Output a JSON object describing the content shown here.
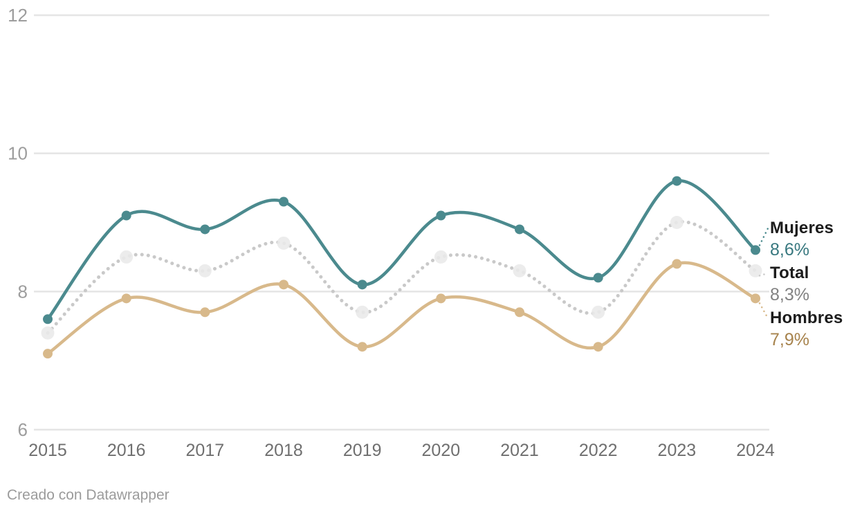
{
  "chart_data": {
    "type": "line",
    "x": [
      "2015",
      "2016",
      "2017",
      "2018",
      "2019",
      "2020",
      "2021",
      "2022",
      "2023",
      "2024"
    ],
    "yticks": [
      "6",
      "8",
      "10",
      "12"
    ],
    "ylim": [
      6,
      12
    ],
    "grid": true,
    "legend_position": "right-end-labels",
    "series": [
      {
        "name": "Mujeres",
        "style": "solid",
        "color": "#4b8a8e",
        "value_text_color": "#38787f",
        "end_value": "8,6%",
        "values": [
          7.6,
          9.1,
          8.9,
          9.3,
          8.1,
          9.1,
          8.9,
          8.2,
          9.6,
          8.6
        ]
      },
      {
        "name": "Total",
        "style": "dotted",
        "color": "#c9c9c9",
        "marker_fill": "#e9e9e9",
        "value_text_color": "#828282",
        "end_value": "8,3%",
        "values": [
          7.4,
          8.5,
          8.3,
          8.7,
          7.7,
          8.5,
          8.3,
          7.7,
          9.0,
          8.3
        ]
      },
      {
        "name": "Hombres",
        "style": "solid",
        "color": "#d8b98b",
        "value_text_color": "#a7834d",
        "end_value": "7,9%",
        "values": [
          7.1,
          7.9,
          7.7,
          8.1,
          7.2,
          7.9,
          7.7,
          7.2,
          8.4,
          7.9
        ]
      }
    ],
    "axis_text_colors": {
      "y_ticks": "#9d9d9d",
      "x_ticks": "#6f6f6f"
    },
    "gridline_color": "#e5e5e5"
  },
  "footer": {
    "text": "Creado con Datawrapper"
  }
}
